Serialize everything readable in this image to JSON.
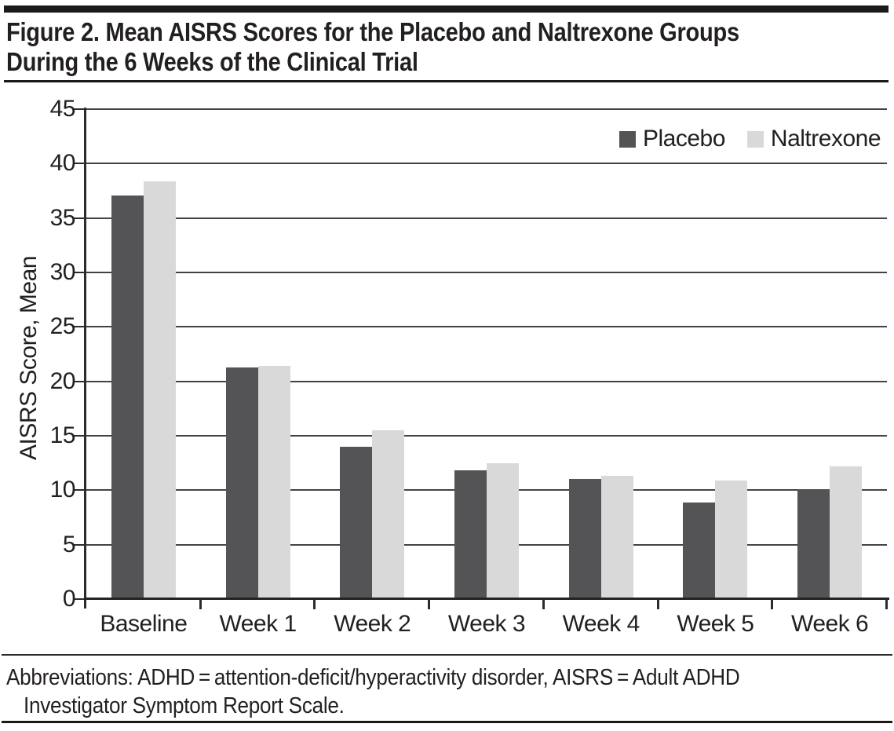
{
  "figure": {
    "title_lines": [
      "Figure 2. Mean AISRS Scores for the Placebo and Naltrexone Groups",
      "During the 6 Weeks of the Clinical Trial"
    ],
    "footnote_lines": [
      "Abbreviations: ADHD = attention-deficit/hyperactivity disorder, AISRS = Adult ADHD",
      "Investigator Symptom Report Scale."
    ]
  },
  "chart_data": {
    "type": "bar",
    "title": "Figure 2. Mean AISRS Scores for the Placebo and Naltrexone Groups During the 6 Weeks of the Clinical Trial",
    "categories": [
      "Baseline",
      "Week 1",
      "Week 2",
      "Week 3",
      "Week 4",
      "Week 5",
      "Week 6"
    ],
    "series": [
      {
        "name": "Placebo",
        "color": "#545456",
        "values": [
          37.1,
          21.3,
          14.0,
          11.8,
          11.0,
          8.9,
          10.1
        ]
      },
      {
        "name": "Naltrexone",
        "color": "#d9d9d9",
        "values": [
          38.4,
          21.4,
          15.5,
          12.5,
          11.3,
          10.9,
          12.2
        ]
      }
    ],
    "xlabel": "",
    "ylabel": "AISRS Score, Mean",
    "ylim": [
      0,
      45
    ],
    "yticks": [
      0,
      5,
      10,
      15,
      20,
      25,
      30,
      35,
      40,
      45
    ],
    "grid": true,
    "legend_position": "top-right",
    "colors": {
      "text": "#231f20",
      "axis": "#2c2c2e",
      "gridline": "#434345"
    }
  }
}
